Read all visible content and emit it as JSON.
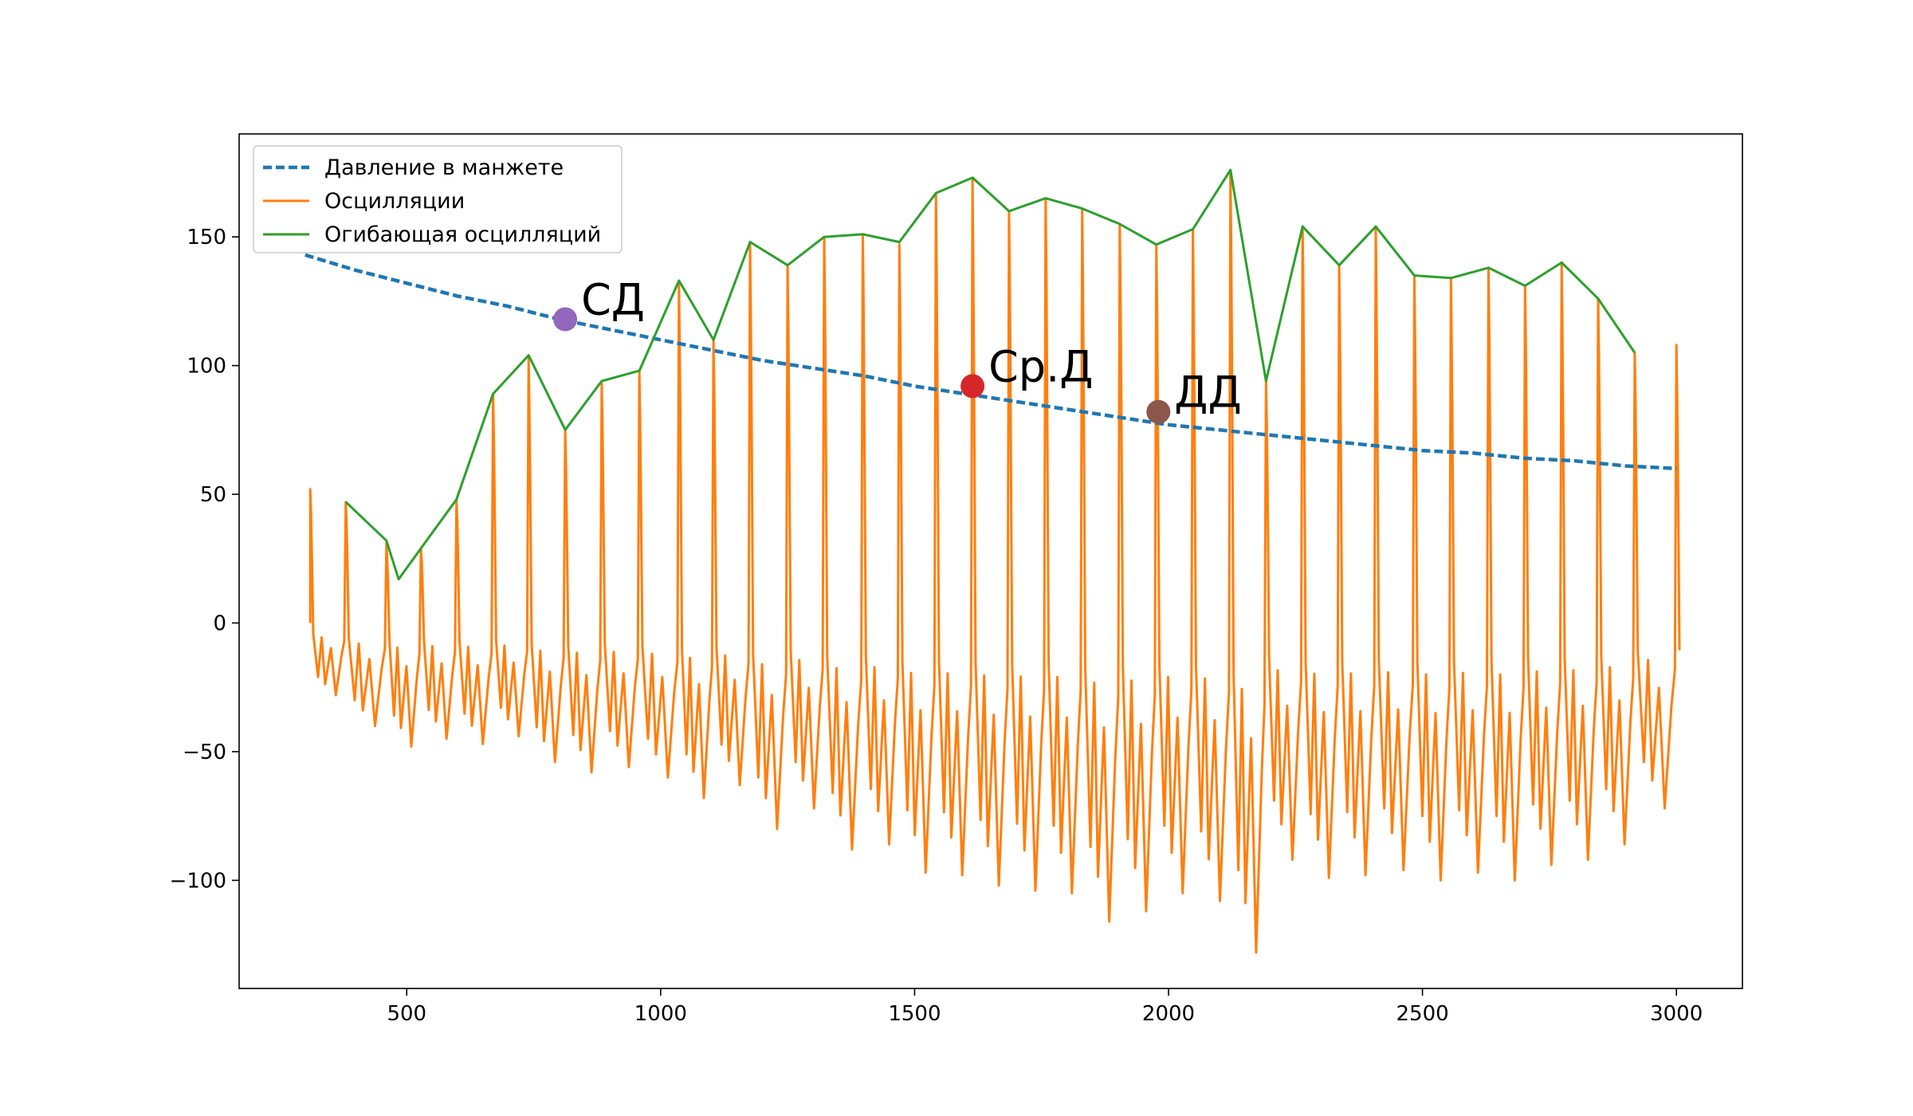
{
  "chart_data": {
    "type": "line",
    "xlim": [
      170,
      3130
    ],
    "ylim": [
      -142,
      190
    ],
    "x_ticks": [
      500,
      1000,
      1500,
      2000,
      2500,
      3000
    ],
    "y_ticks": [
      -100,
      -50,
      0,
      50,
      100,
      150
    ],
    "grid": false,
    "legend_position": "top-left",
    "series": [
      {
        "name": "Давление в манжете",
        "color": "#1f77b4",
        "style": "dashed",
        "x": [
          300,
          400,
          500,
          600,
          700,
          800,
          900,
          1000,
          1100,
          1200,
          1300,
          1400,
          1500,
          1600,
          1700,
          1800,
          1900,
          2000,
          2100,
          2200,
          2300,
          2400,
          2500,
          2600,
          2700,
          2800,
          2900,
          3000
        ],
        "y": [
          143,
          137,
          132,
          127,
          123,
          118,
          114,
          110,
          106,
          102,
          99,
          96,
          92,
          89,
          86,
          83,
          80,
          77,
          75,
          73,
          71,
          69,
          67,
          66,
          64,
          63,
          61,
          60
        ]
      },
      {
        "name": "Осцилляции",
        "color": "#ff7f0e",
        "style": "solid",
        "beats_x": [
          310,
          380,
          460,
          528,
          598,
          670,
          740,
          812,
          884,
          958,
          1036,
          1104,
          1176,
          1250,
          1322,
          1398,
          1470,
          1542,
          1614,
          1686,
          1758,
          1830,
          1904,
          1976,
          2048,
          2122,
          2192,
          2264,
          2336,
          2408,
          2484,
          2556,
          2630,
          2702,
          2774,
          2846,
          2918,
          3000
        ],
        "beats_peak": [
          52,
          47,
          31,
          29,
          48,
          89,
          103,
          75,
          93,
          98,
          132,
          110,
          148,
          139,
          150,
          151,
          147,
          167,
          172,
          160,
          165,
          161,
          155,
          147,
          153,
          175,
          94,
          154,
          139,
          154,
          135,
          134,
          138,
          131,
          140,
          126,
          105,
          108
        ],
        "beats_trough": [
          -28,
          -40,
          -48,
          -45,
          -47,
          -44,
          -54,
          -58,
          -56,
          -60,
          -68,
          -63,
          -80,
          -72,
          -88,
          -86,
          -97,
          -98,
          -102,
          -104,
          -105,
          -116,
          -112,
          -105,
          -108,
          -128,
          -92,
          -99,
          -98,
          -96,
          -100,
          -97,
          -100,
          -94,
          -92,
          -86,
          -72,
          -68
        ]
      },
      {
        "name": "Огибающая осцилляций",
        "color": "#2ca02c",
        "style": "solid",
        "x": [
          380,
          460,
          484,
          528,
          598,
          670,
          740,
          812,
          884,
          958,
          1036,
          1104,
          1176,
          1250,
          1322,
          1398,
          1470,
          1542,
          1614,
          1686,
          1758,
          1830,
          1904,
          1976,
          2048,
          2122,
          2192,
          2264,
          2336,
          2408,
          2484,
          2556,
          2630,
          2702,
          2774,
          2846,
          2918
        ],
        "y": [
          47,
          32,
          17,
          29,
          48,
          89,
          104,
          75,
          94,
          98,
          133,
          110,
          148,
          139,
          150,
          151,
          148,
          167,
          173,
          160,
          165,
          161,
          155,
          147,
          153,
          176,
          94,
          154,
          139,
          154,
          135,
          134,
          138,
          131,
          140,
          126,
          105
        ]
      }
    ],
    "annotations": [
      {
        "label": "СД",
        "x": 812,
        "y": 118,
        "color": "#9467bd"
      },
      {
        "label": "Ср.Д",
        "x": 1614,
        "y": 92,
        "color": "#d62728"
      },
      {
        "label": "ДД",
        "x": 1980,
        "y": 82,
        "color": "#8c564b"
      }
    ]
  }
}
